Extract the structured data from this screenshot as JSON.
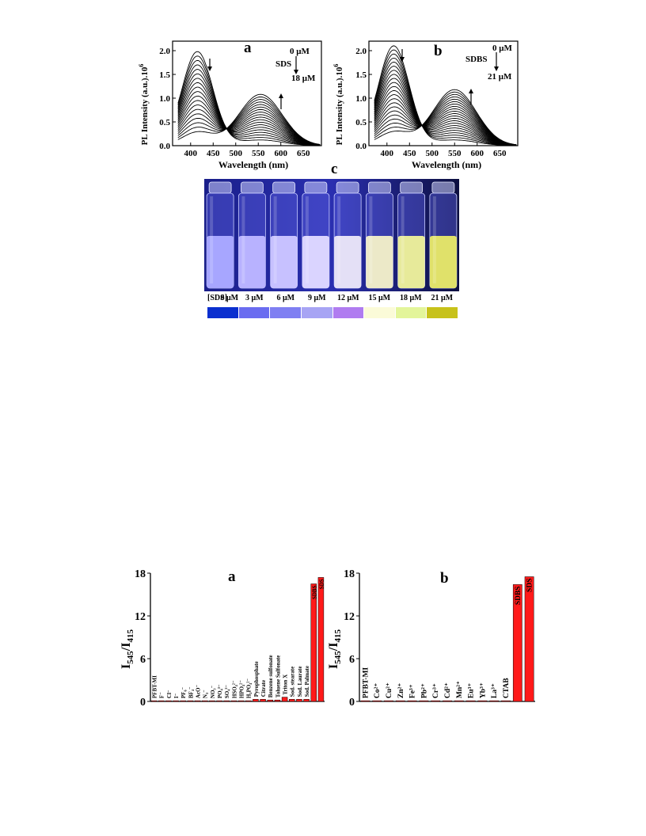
{
  "figure_top": {
    "panel_a": {
      "letter": "a",
      "ylabel": "PL Intensity (a.u.).10",
      "ylabel_sup": "6",
      "xlabel": "Wavelength (nm)",
      "conc_start": "0 μM",
      "conc_end": "18 μM",
      "surfactant": "SDS"
    },
    "panel_b": {
      "letter": "b",
      "ylabel": "PL Intensity (a.u.).10",
      "ylabel_sup": "6",
      "xlabel": "Wavelength (nm)",
      "conc_start": "0 μM",
      "conc_end": "21 μM",
      "surfactant": "SDBS"
    },
    "panel_c": {
      "letter": "c",
      "row_label": "[SDS]",
      "concentrations": [
        "0 μM",
        "3 μM",
        "6 μM",
        "9 μM",
        "12 μM",
        "15 μM",
        "18 μM",
        "21 μM"
      ],
      "swatch_colors": [
        "#0a2fcf",
        "#6a6cf0",
        "#7f7ff2",
        "#a7a4f4",
        "#b07cf0",
        "#fbfbd8",
        "#e3f59a",
        "#c7c21a"
      ],
      "vial_liquid_colors": [
        "#a7a6ff",
        "#b8b2ff",
        "#c7c1ff",
        "#dad4ff",
        "#e4e0f6",
        "#ece9c8",
        "#e7ea9a",
        "#e0e16a"
      ]
    }
  },
  "figure_bottom": {
    "panel_a": {
      "letter": "a",
      "ylabel_main": "I",
      "ylabel_sub1": "545",
      "ylabel_slash": "/I",
      "ylabel_sub2": "415"
    },
    "panel_b": {
      "letter": "b",
      "ylabel_main": "I",
      "ylabel_sub1": "545",
      "ylabel_slash": "/I",
      "ylabel_sub2": "415"
    }
  },
  "chart_data": [
    {
      "type": "line",
      "panel": "a",
      "xlabel": "Wavelength (nm)",
      "ylabel": "PL Intensity (a.u.).10^6",
      "xlim": [
        360,
        690
      ],
      "ylim": [
        0,
        2.2
      ],
      "xticks": [
        400,
        450,
        500,
        550,
        600,
        650
      ],
      "yticks": [
        0.0,
        0.5,
        1.0,
        1.5,
        2.0
      ],
      "ytick_labels": [
        "0.0",
        "0.5",
        "1.0",
        "1.5",
        "2.0"
      ],
      "isosbestic_point_nm": 500,
      "series_summary": {
        "curve_count": 19,
        "blue_peak_nm": 415,
        "blue_peak_max": 1.98,
        "blue_peak_min": 0.28,
        "yellow_peak_nm": 555,
        "yellow_peak_min": 0.12,
        "yellow_peak_max": 1.08
      }
    },
    {
      "type": "line",
      "panel": "b",
      "xlabel": "Wavelength (nm)",
      "ylabel": "PL Intensity (a.u.).10^6",
      "xlim": [
        360,
        690
      ],
      "ylim": [
        0,
        2.2
      ],
      "xticks": [
        400,
        450,
        500,
        550,
        600,
        650
      ],
      "yticks": [
        0.0,
        0.5,
        1.0,
        1.5,
        2.0
      ],
      "ytick_labels": [
        "0.0",
        "0.5",
        "1.0",
        "1.5",
        "2.0"
      ],
      "isosbestic_point_nm": 505,
      "series_summary": {
        "curve_count": 22,
        "blue_peak_nm": 415,
        "blue_peak_max": 2.1,
        "blue_peak_min": 0.28,
        "yellow_peak_nm": 550,
        "yellow_peak_min": 0.12,
        "yellow_peak_max": 1.18
      }
    },
    {
      "type": "bar",
      "panel": "a",
      "ylabel": "I545/I415",
      "ylim": [
        0,
        18
      ],
      "yticks": [
        0,
        6,
        12,
        18
      ],
      "categories": [
        "PFBT-MI",
        "F⁻",
        "Cl⁻",
        "I⁻",
        "PF₆⁻",
        "BF₄⁻",
        "AcO⁻",
        "N₃⁻",
        "NO₃⁻",
        "PO₄³⁻",
        "SO₄²⁻",
        "HSO₄²⁻",
        "HPO₄²⁻",
        "H₂PO₄²⁻",
        "Pyrophosphate",
        "Citrate",
        "Benzene sulfonate",
        "Toluene Sulfonate",
        "Triton X",
        "Sod. stearate",
        "Sod. Laurate",
        "Sod. Palmate",
        "SDBS",
        "SDS"
      ],
      "values": [
        0.1,
        0.1,
        0.1,
        0.1,
        0.1,
        0.1,
        0.1,
        0.1,
        0.1,
        0.1,
        0.1,
        0.1,
        0.1,
        0.1,
        0.3,
        0.3,
        0.2,
        0.2,
        0.6,
        0.3,
        0.3,
        0.3,
        16.5,
        17.4
      ],
      "color": "#ff1a1a"
    },
    {
      "type": "bar",
      "panel": "b",
      "ylabel": "I545/I415",
      "ylim": [
        0,
        18
      ],
      "yticks": [
        0,
        6,
        12,
        18
      ],
      "categories": [
        "PFBT-MI",
        "Co²⁺",
        "Cu²⁺",
        "Zn²⁺",
        "Fe³⁺",
        "Pb²⁺",
        "Cr³⁺",
        "Cd²⁺",
        "Mn²⁺",
        "Eu³⁺",
        "Yb³⁺",
        "La³⁺",
        "CTAB",
        "SDBS",
        "SDS"
      ],
      "values": [
        0.1,
        0.1,
        0.1,
        0.1,
        0.1,
        0.1,
        0.1,
        0.1,
        0.1,
        0.1,
        0.1,
        0.1,
        0.1,
        16.4,
        17.5
      ],
      "color": "#ff1a1a"
    }
  ]
}
